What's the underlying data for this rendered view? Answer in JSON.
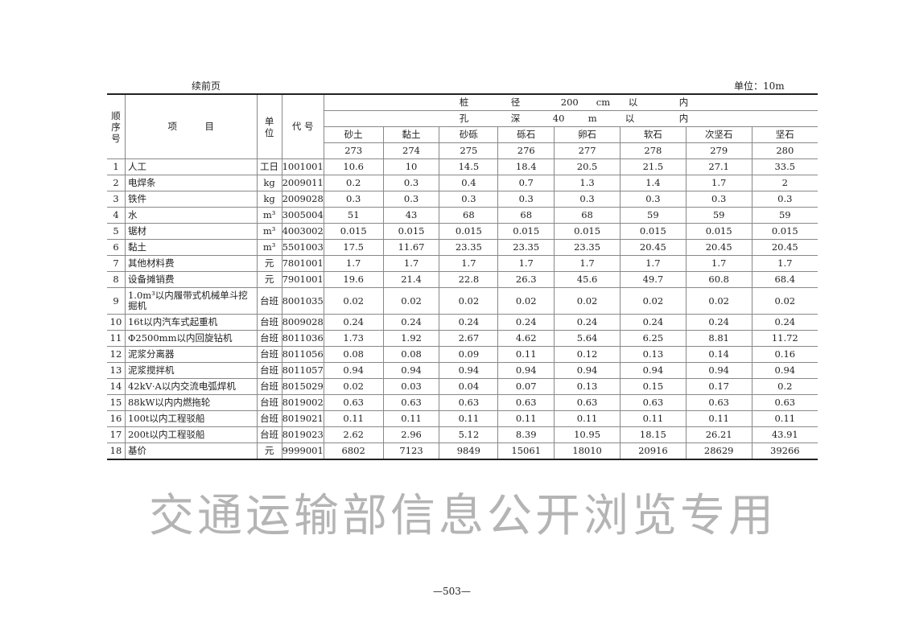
{
  "header": {
    "continued": "续前页",
    "unit": "单位：10m"
  },
  "columns": {
    "seq": "顺序号",
    "item": "项　　　目",
    "unit": "单位",
    "code": "代 号",
    "spec1": [
      "桩",
      "径",
      "200",
      "cm",
      "以",
      "内"
    ],
    "spec2": [
      "孔",
      "深",
      "40",
      "m",
      "以",
      "内"
    ],
    "soils": [
      "砂土",
      "黏土",
      "砂砾",
      "砾石",
      "卵石",
      "软石",
      "次坚石",
      "坚石"
    ],
    "numbers": [
      "273",
      "274",
      "275",
      "276",
      "277",
      "278",
      "279",
      "280"
    ]
  },
  "rows": [
    {
      "seq": "1",
      "item": "人工",
      "unit": "工日",
      "code": "1001001",
      "values": [
        "10.6",
        "10",
        "14.5",
        "18.4",
        "20.5",
        "21.5",
        "27.1",
        "33.5"
      ]
    },
    {
      "seq": "2",
      "item": "电焊条",
      "unit": "kg",
      "code": "2009011",
      "values": [
        "0.2",
        "0.3",
        "0.4",
        "0.7",
        "1.3",
        "1.4",
        "1.7",
        "2"
      ]
    },
    {
      "seq": "3",
      "item": "铁件",
      "unit": "kg",
      "code": "2009028",
      "values": [
        "0.3",
        "0.3",
        "0.3",
        "0.3",
        "0.3",
        "0.3",
        "0.3",
        "0.3"
      ]
    },
    {
      "seq": "4",
      "item": "水",
      "unit": "m³",
      "code": "3005004",
      "values": [
        "51",
        "43",
        "68",
        "68",
        "68",
        "59",
        "59",
        "59"
      ]
    },
    {
      "seq": "5",
      "item": "锯材",
      "unit": "m³",
      "code": "4003002",
      "values": [
        "0.015",
        "0.015",
        "0.015",
        "0.015",
        "0.015",
        "0.015",
        "0.015",
        "0.015"
      ]
    },
    {
      "seq": "6",
      "item": "黏土",
      "unit": "m³",
      "code": "5501003",
      "values": [
        "17.5",
        "11.67",
        "23.35",
        "23.35",
        "23.35",
        "20.45",
        "20.45",
        "20.45"
      ]
    },
    {
      "seq": "7",
      "item": "其他材料费",
      "unit": "元",
      "code": "7801001",
      "values": [
        "1.7",
        "1.7",
        "1.7",
        "1.7",
        "1.7",
        "1.7",
        "1.7",
        "1.7"
      ]
    },
    {
      "seq": "8",
      "item": "设备摊销费",
      "unit": "元",
      "code": "7901001",
      "values": [
        "19.6",
        "21.4",
        "22.8",
        "26.3",
        "45.6",
        "49.7",
        "60.8",
        "68.4"
      ]
    },
    {
      "seq": "9",
      "item": "1.0m³以内履带式机械单斗挖掘机",
      "unit": "台班",
      "code": "8001035",
      "values": [
        "0.02",
        "0.02",
        "0.02",
        "0.02",
        "0.02",
        "0.02",
        "0.02",
        "0.02"
      ]
    },
    {
      "seq": "10",
      "item": "16t以内汽车式起重机",
      "unit": "台班",
      "code": "8009028",
      "values": [
        "0.24",
        "0.24",
        "0.24",
        "0.24",
        "0.24",
        "0.24",
        "0.24",
        "0.24"
      ]
    },
    {
      "seq": "11",
      "item": "Φ2500mm以内回旋钻机",
      "unit": "台班",
      "code": "8011036",
      "values": [
        "1.73",
        "1.92",
        "2.67",
        "4.62",
        "5.64",
        "6.25",
        "8.81",
        "11.72"
      ]
    },
    {
      "seq": "12",
      "item": "泥浆分离器",
      "unit": "台班",
      "code": "8011056",
      "values": [
        "0.08",
        "0.08",
        "0.09",
        "0.11",
        "0.12",
        "0.13",
        "0.14",
        "0.16"
      ]
    },
    {
      "seq": "13",
      "item": "泥浆搅拌机",
      "unit": "台班",
      "code": "8011057",
      "values": [
        "0.94",
        "0.94",
        "0.94",
        "0.94",
        "0.94",
        "0.94",
        "0.94",
        "0.94"
      ]
    },
    {
      "seq": "14",
      "item": "42kV·A以内交流电弧焊机",
      "unit": "台班",
      "code": "8015029",
      "values": [
        "0.02",
        "0.03",
        "0.04",
        "0.07",
        "0.13",
        "0.15",
        "0.17",
        "0.2"
      ]
    },
    {
      "seq": "15",
      "item": "88kW以内内燃拖轮",
      "unit": "台班",
      "code": "8019002",
      "values": [
        "0.63",
        "0.63",
        "0.63",
        "0.63",
        "0.63",
        "0.63",
        "0.63",
        "0.63"
      ]
    },
    {
      "seq": "16",
      "item": "100t以内工程驳船",
      "unit": "台班",
      "code": "8019021",
      "values": [
        "0.11",
        "0.11",
        "0.11",
        "0.11",
        "0.11",
        "0.11",
        "0.11",
        "0.11"
      ]
    },
    {
      "seq": "17",
      "item": "200t以内工程驳船",
      "unit": "台班",
      "code": "8019023",
      "values": [
        "2.62",
        "2.96",
        "5.12",
        "8.39",
        "10.95",
        "18.15",
        "26.21",
        "43.91"
      ]
    },
    {
      "seq": "18",
      "item": "基价",
      "unit": "元",
      "code": "9999001",
      "values": [
        "6802",
        "7123",
        "9849",
        "15061",
        "18010",
        "20916",
        "28629",
        "39266"
      ]
    }
  ],
  "footer": {
    "page": "—503—"
  },
  "watermark": "交通运输部信息公开浏览专用"
}
